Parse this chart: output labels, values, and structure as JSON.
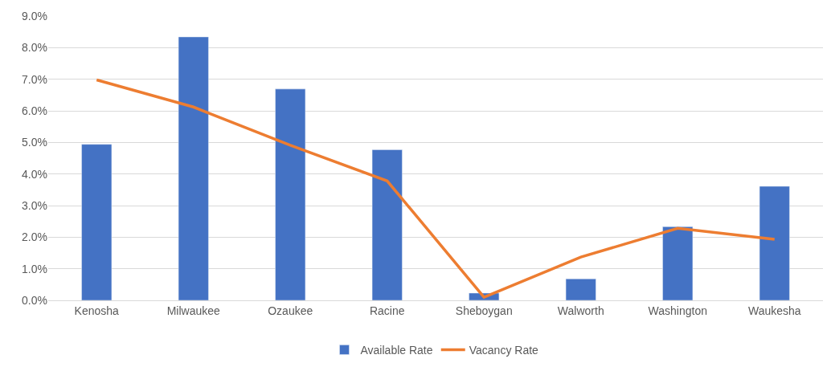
{
  "chart_data": {
    "type": "bar",
    "categories": [
      "Kenosha",
      "Milwaukee",
      "Ozaukee",
      "Racine",
      "Sheboygan",
      "Walworth",
      "Washington",
      "Waukesha"
    ],
    "series": [
      {
        "name": "Available Rate",
        "color": "#4472c4",
        "values": [
          4.94,
          8.34,
          6.69,
          4.77,
          0.23,
          0.68,
          2.33,
          3.61
        ]
      },
      {
        "name": "Vacancy Rate",
        "type": "line",
        "color": "#ed7d31",
        "values": [
          6.98,
          6.12,
          4.91,
          3.78,
          0.1,
          1.37,
          2.28,
          1.93
        ]
      }
    ],
    "ylim": [
      0,
      9
    ],
    "yticks": [
      {
        "value": 0,
        "label": "0.0%"
      },
      {
        "value": 1,
        "label": "1.0%"
      },
      {
        "value": 2,
        "label": "2.0%"
      },
      {
        "value": 3,
        "label": "3.0%"
      },
      {
        "value": 4,
        "label": "4.0%"
      },
      {
        "value": 5,
        "label": "5.0%"
      },
      {
        "value": 6,
        "label": "6.0%"
      },
      {
        "value": 7,
        "label": "7.0%"
      },
      {
        "value": 8,
        "label": "8.0%"
      },
      {
        "value": 9,
        "label": "9.0%"
      }
    ],
    "grid": "y",
    "legend": "bottom",
    "marker": "none",
    "line_style": "solid"
  }
}
